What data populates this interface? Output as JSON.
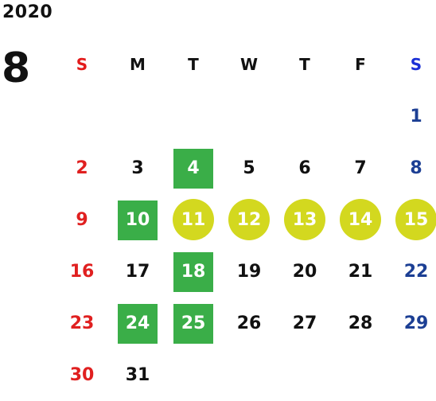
{
  "year": "2020",
  "month": "8",
  "colors": {
    "sunday": "#e02020",
    "saturday": "#1c3f94",
    "highlight_square": "#3aae48",
    "highlight_circle": "#d3d81f"
  },
  "weekdays": [
    "S",
    "M",
    "T",
    "W",
    "T",
    "F",
    "S"
  ],
  "weeks": [
    [
      "",
      "",
      "",
      "",
      "",
      "",
      "1"
    ],
    [
      "2",
      "3",
      "4",
      "5",
      "6",
      "7",
      "8"
    ],
    [
      "9",
      "10",
      "11",
      "12",
      "13",
      "14",
      "15"
    ],
    [
      "16",
      "17",
      "18",
      "19",
      "20",
      "21",
      "22"
    ],
    [
      "23",
      "24",
      "25",
      "26",
      "27",
      "28",
      "29"
    ],
    [
      "30",
      "31",
      "",
      "",
      "",
      "",
      ""
    ]
  ]
}
